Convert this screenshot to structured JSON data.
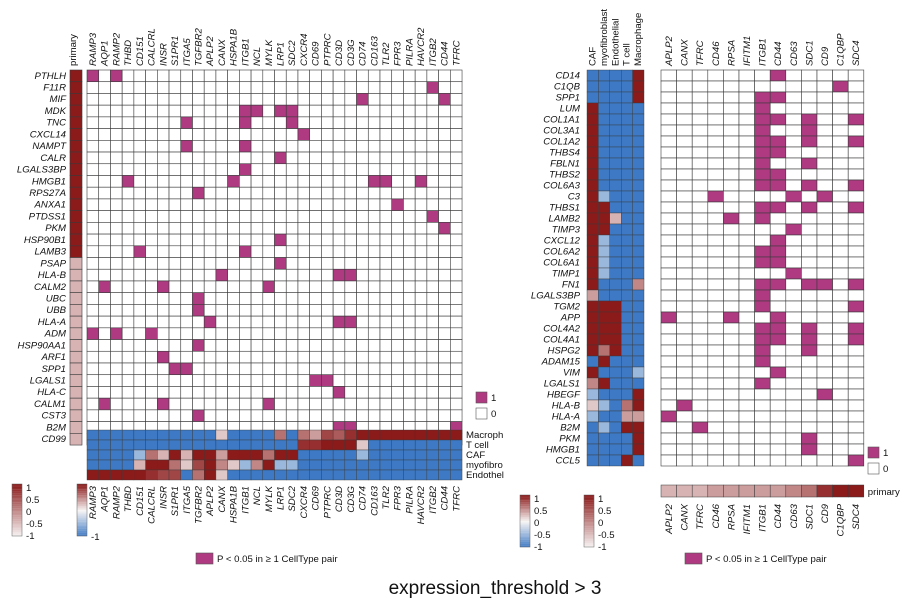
{
  "caption": "expression_threshold > 3",
  "colors": {
    "hit": "#b03a82",
    "hit_border": "#555555",
    "cell_border": "#3a3a3a",
    "red": "#8b1a1a",
    "white": "#f7f4f4",
    "blue": "#3d79c4"
  },
  "legend_text": {
    "one": "1",
    "zero": "0",
    "pair": "P < 0.05 in ≥ 1 CellType pair"
  },
  "scale_ticks_1": [
    "1",
    "0.5",
    "0",
    "-0.5",
    "-1"
  ],
  "scale_ticks_2": [
    "1",
    "0.5",
    "0",
    "-0.5",
    "-1"
  ],
  "chart_data": [
    {
      "type": "heatmap",
      "title": "",
      "rows": [
        "PTHLH",
        "F11R",
        "MIF",
        "MDK",
        "TNC",
        "CXCL14",
        "NAMPT",
        "CALR",
        "LGALS3BP",
        "HMGB1",
        "RPS27A",
        "ANXA1",
        "PTDSS1",
        "PKM",
        "HSP90B1",
        "LAMB3",
        "PSAP",
        "HLA-B",
        "CALM2",
        "UBC",
        "UBB",
        "HLA-A",
        "ADM",
        "HSP90AA1",
        "ARF1",
        "SPP1",
        "LGALS1",
        "HLA-C",
        "CALM1",
        "CST3",
        "B2M",
        "CD99"
      ],
      "columns": [
        "RAMP3",
        "AQP1",
        "RAMP2",
        "THBD",
        "CD151",
        "CALCRL",
        "INSR",
        "S1PR1",
        "ITGA5",
        "TGFBR2",
        "APLP2",
        "CANX",
        "HSPA1B",
        "ITGB1",
        "NCL",
        "MYLK",
        "LRP1",
        "SDC2",
        "CXCR4",
        "CD69",
        "PTPRC",
        "CD3D",
        "CD3G",
        "CD74",
        "CD163",
        "TLR2",
        "FPR3",
        "PILRA",
        "HAVCR2",
        "ITGB2",
        "CD44",
        "TFRC"
      ],
      "significant_cells": [
        [
          "PTHLH",
          "RAMP3"
        ],
        [
          "PTHLH",
          "RAMP2"
        ],
        [
          "F11R",
          "ITGB2"
        ],
        [
          "MIF",
          "CD74"
        ],
        [
          "MIF",
          "CD44"
        ],
        [
          "MDK",
          "ITGB1"
        ],
        [
          "MDK",
          "NCL"
        ],
        [
          "MDK",
          "LRP1"
        ],
        [
          "MDK",
          "SDC2"
        ],
        [
          "TNC",
          "ITGA5"
        ],
        [
          "TNC",
          "ITGB1"
        ],
        [
          "TNC",
          "SDC2"
        ],
        [
          "CXCL14",
          "CXCR4"
        ],
        [
          "NAMPT",
          "ITGA5"
        ],
        [
          "NAMPT",
          "ITGB1"
        ],
        [
          "CALR",
          "LRP1"
        ],
        [
          "LGALS3BP",
          "ITGB1"
        ],
        [
          "HMGB1",
          "THBD"
        ],
        [
          "HMGB1",
          "HSPA1B"
        ],
        [
          "HMGB1",
          "CD163"
        ],
        [
          "HMGB1",
          "TLR2"
        ],
        [
          "HMGB1",
          "HAVCR2"
        ],
        [
          "RPS27A",
          "TGFBR2"
        ],
        [
          "ANXA1",
          "FPR3"
        ],
        [
          "PTDSS1",
          "ITGB2"
        ],
        [
          "PKM",
          "CD44"
        ],
        [
          "HSP90B1",
          "LRP1"
        ],
        [
          "LAMB3",
          "CD151"
        ],
        [
          "LAMB3",
          "ITGB1"
        ],
        [
          "PSAP",
          "LRP1"
        ],
        [
          "HLA-B",
          "CANX"
        ],
        [
          "HLA-B",
          "CD3D"
        ],
        [
          "HLA-B",
          "CD3G"
        ],
        [
          "CALM2",
          "AQP1"
        ],
        [
          "CALM2",
          "INSR"
        ],
        [
          "CALM2",
          "MYLK"
        ],
        [
          "UBC",
          "TGFBR2"
        ],
        [
          "UBB",
          "TGFBR2"
        ],
        [
          "HLA-A",
          "APLP2"
        ],
        [
          "HLA-A",
          "CD3D"
        ],
        [
          "HLA-A",
          "CD3G"
        ],
        [
          "ADM",
          "RAMP3"
        ],
        [
          "ADM",
          "RAMP2"
        ],
        [
          "ADM",
          "CALCRL"
        ],
        [
          "HSP90AA1",
          "TGFBR2"
        ],
        [
          "ARF1",
          "INSR"
        ],
        [
          "SPP1",
          "S1PR1"
        ],
        [
          "SPP1",
          "ITGA5"
        ],
        [
          "LGALS1",
          "CD69"
        ],
        [
          "LGALS1",
          "PTPRC"
        ],
        [
          "HLA-C",
          "CD3D"
        ],
        [
          "CALM1",
          "AQP1"
        ],
        [
          "CALM1",
          "INSR"
        ],
        [
          "CALM1",
          "MYLK"
        ],
        [
          "CST3",
          "TGFBR2"
        ],
        [
          "B2M",
          "CD3D"
        ],
        [
          "B2M",
          "CD3G"
        ],
        [
          "B2M",
          "TFRC"
        ],
        [
          "CD99",
          "PILRA"
        ]
      ],
      "primary_expression": [
        1,
        1,
        1,
        1,
        1,
        1,
        1,
        1,
        1,
        1,
        1,
        1,
        1,
        1,
        1,
        1,
        0.3,
        0.3,
        0.3,
        0.3,
        0.3,
        0.3,
        0.3,
        0.3,
        0.3,
        0.3,
        0.3,
        0.3,
        0.3,
        0.3,
        0.3,
        0.3
      ],
      "celltype_rows": [
        "Macroph",
        "T cell",
        "CAF",
        "myofibro",
        "Endothel"
      ],
      "celltype_expression": [
        [
          -1,
          -1,
          -1,
          -1,
          -1,
          -1,
          -1,
          -1,
          -1,
          -1,
          -1,
          0.2,
          -1,
          -1,
          -1,
          -1,
          0.6,
          -1,
          0.6,
          0.4,
          0.8,
          0.7,
          0.9,
          1,
          1,
          1,
          1,
          1,
          1,
          1,
          1,
          1
        ],
        [
          -1,
          -1,
          -1,
          -1,
          -1,
          -1,
          -1,
          -1,
          -1,
          -1,
          -1,
          -1,
          -1,
          -1,
          -1,
          -1,
          -1,
          -1,
          0.9,
          0.9,
          1,
          1,
          1,
          0.2,
          -1,
          -1,
          -1,
          -1,
          -1,
          -1,
          -1,
          -1
        ],
        [
          -1,
          -1,
          -1,
          -1,
          -0.5,
          0.6,
          0.3,
          1,
          0.3,
          1,
          1,
          0.4,
          1,
          1,
          1,
          0.6,
          1,
          1,
          -1,
          -1,
          -1,
          -1,
          -1,
          -0.5,
          -1,
          -1,
          -1,
          -1,
          -1,
          -1,
          -1,
          -1
        ],
        [
          -1,
          -1,
          -1,
          -1,
          0.3,
          1,
          1,
          0.6,
          0.2,
          0.8,
          1,
          0.5,
          0.2,
          -0.5,
          0.5,
          1,
          -0.5,
          -0.5,
          -1,
          -1,
          -1,
          -1,
          -1,
          -1,
          -1,
          -1,
          -1,
          -1,
          -1,
          -1,
          -1,
          -1
        ],
        [
          1,
          1,
          1,
          1,
          1,
          0.9,
          0.8,
          0.8,
          -1,
          0.6,
          1,
          0.2,
          -1,
          -1,
          -1,
          -1,
          -1,
          -1,
          -1,
          -1,
          -1,
          -1,
          -1,
          -1,
          -1,
          -1,
          -1,
          -1,
          -1,
          -1,
          -1,
          -1
        ]
      ],
      "color_scale": [
        -1,
        1
      ]
    },
    {
      "type": "heatmap",
      "title": "",
      "rows": [
        "CD14",
        "C1QB",
        "SPP1",
        "LUM",
        "COL1A1",
        "COL3A1",
        "COL1A2",
        "THBS4",
        "FBLN1",
        "THBS2",
        "COL6A3",
        "C3",
        "THBS1",
        "LAMB2",
        "TIMP3",
        "CXCL12",
        "COL6A2",
        "COL6A1",
        "TIMP1",
        "FN1",
        "LGALS3BP",
        "TGM2",
        "APP",
        "COL4A2",
        "COL4A1",
        "HSPG2",
        "ADAM15",
        "VIM",
        "LGALS1",
        "HBEGF",
        "HLA-B",
        "HLA-A",
        "B2M",
        "PKM",
        "HMGB1",
        "CCL5"
      ],
      "columns": [
        "APLP2",
        "CANX",
        "TFRC",
        "CD46",
        "RPSA",
        "IFITM1",
        "ITGB1",
        "CD44",
        "CD63",
        "SDC1",
        "CD9",
        "C1QBP",
        "SDC4"
      ],
      "celltype_columns": [
        "CAF",
        "myofibroblast",
        "Endothelial",
        "T cell",
        "Macrophage"
      ],
      "significant_cells": [
        [
          "CD14",
          "CD44"
        ],
        [
          "C1QB",
          "C1QBP"
        ],
        [
          "SPP1",
          "ITGB1"
        ],
        [
          "SPP1",
          "CD44"
        ],
        [
          "LUM",
          "ITGB1"
        ],
        [
          "COL1A1",
          "ITGB1"
        ],
        [
          "COL1A1",
          "CD44"
        ],
        [
          "COL1A1",
          "SDC1"
        ],
        [
          "COL1A1",
          "SDC4"
        ],
        [
          "COL3A1",
          "ITGB1"
        ],
        [
          "COL3A1",
          "SDC1"
        ],
        [
          "COL1A2",
          "ITGB1"
        ],
        [
          "COL1A2",
          "CD44"
        ],
        [
          "COL1A2",
          "SDC1"
        ],
        [
          "COL1A2",
          "SDC4"
        ],
        [
          "THBS4",
          "ITGB1"
        ],
        [
          "THBS4",
          "CD44"
        ],
        [
          "FBLN1",
          "ITGB1"
        ],
        [
          "FBLN1",
          "SDC1"
        ],
        [
          "THBS2",
          "ITGB1"
        ],
        [
          "THBS2",
          "CD44"
        ],
        [
          "COL6A3",
          "ITGB1"
        ],
        [
          "COL6A3",
          "CD44"
        ],
        [
          "COL6A3",
          "SDC1"
        ],
        [
          "COL6A3",
          "SDC4"
        ],
        [
          "C3",
          "CD46"
        ],
        [
          "C3",
          "CD63"
        ],
        [
          "C3",
          "CD9"
        ],
        [
          "THBS1",
          "ITGB1"
        ],
        [
          "THBS1",
          "CD44"
        ],
        [
          "THBS1",
          "SDC1"
        ],
        [
          "THBS1",
          "SDC4"
        ],
        [
          "LAMB2",
          "RPSA"
        ],
        [
          "LAMB2",
          "ITGB1"
        ],
        [
          "TIMP3",
          "CD63"
        ],
        [
          "CXCL12",
          "CD44"
        ],
        [
          "COL6A2",
          "ITGB1"
        ],
        [
          "COL6A2",
          "CD44"
        ],
        [
          "COL6A1",
          "ITGB1"
        ],
        [
          "COL6A1",
          "CD44"
        ],
        [
          "TIMP1",
          "CD63"
        ],
        [
          "FN1",
          "ITGB1"
        ],
        [
          "FN1",
          "CD44"
        ],
        [
          "FN1",
          "SDC1"
        ],
        [
          "FN1",
          "CD9"
        ],
        [
          "FN1",
          "SDC4"
        ],
        [
          "LGALS3BP",
          "ITGB1"
        ],
        [
          "TGM2",
          "ITGB1"
        ],
        [
          "TGM2",
          "SDC4"
        ],
        [
          "APP",
          "APLP2"
        ],
        [
          "APP",
          "RPSA"
        ],
        [
          "APP",
          "CD44"
        ],
        [
          "COL4A2",
          "ITGB1"
        ],
        [
          "COL4A2",
          "CD44"
        ],
        [
          "COL4A2",
          "SDC1"
        ],
        [
          "COL4A2",
          "SDC4"
        ],
        [
          "COL4A1",
          "ITGB1"
        ],
        [
          "COL4A1",
          "CD44"
        ],
        [
          "COL4A1",
          "SDC1"
        ],
        [
          "COL4A1",
          "SDC4"
        ],
        [
          "HSPG2",
          "ITGB1"
        ],
        [
          "HSPG2",
          "SDC1"
        ],
        [
          "ADAM15",
          "ITGB1"
        ],
        [
          "VIM",
          "CD44"
        ],
        [
          "LGALS1",
          "ITGB1"
        ],
        [
          "HBEGF",
          "CD9"
        ],
        [
          "HLA-B",
          "CANX"
        ],
        [
          "HLA-A",
          "APLP2"
        ],
        [
          "B2M",
          "TFRC"
        ],
        [
          "PKM",
          "SDC1"
        ],
        [
          "HMGB1",
          "SDC1"
        ],
        [
          "CCL5",
          "SDC4"
        ]
      ],
      "celltype_expression": [
        [
          -1,
          -1,
          -1,
          -1,
          1
        ],
        [
          -1,
          -1,
          -1,
          -1,
          1
        ],
        [
          -1,
          -1,
          -1,
          -1,
          1
        ],
        [
          1,
          -1,
          -1,
          -1,
          -1
        ],
        [
          1,
          -1,
          -1,
          -1,
          -1
        ],
        [
          1,
          -1,
          -1,
          -1,
          -1
        ],
        [
          1,
          -1,
          -1,
          -1,
          -1
        ],
        [
          1,
          -1,
          -1,
          -1,
          -1
        ],
        [
          1,
          -1,
          -1,
          -1,
          -1
        ],
        [
          1,
          -1,
          -1,
          -1,
          -1
        ],
        [
          1,
          -1,
          -1,
          -1,
          -1
        ],
        [
          1,
          -0.5,
          -1,
          -1,
          -1
        ],
        [
          1,
          1,
          -1,
          -1,
          -1
        ],
        [
          1,
          1,
          0.3,
          -1,
          -1
        ],
        [
          1,
          1,
          -1,
          -1,
          -1
        ],
        [
          1,
          -0.5,
          -1,
          -1,
          -1
        ],
        [
          1,
          -0.5,
          -1,
          -1,
          -1
        ],
        [
          1,
          -0.5,
          -1,
          -1,
          -1
        ],
        [
          1,
          -0.5,
          -1,
          -1,
          -1
        ],
        [
          1,
          -1,
          -1,
          -1,
          0.5
        ],
        [
          0.4,
          -1,
          -1,
          -1,
          -1
        ],
        [
          1,
          1,
          1,
          -1,
          -1
        ],
        [
          1,
          1,
          1,
          -1,
          -1
        ],
        [
          1,
          1,
          1,
          -1,
          -1
        ],
        [
          1,
          1,
          1,
          -1,
          -1
        ],
        [
          1,
          0.6,
          1,
          -1,
          -1
        ],
        [
          -1,
          1,
          -1,
          -1,
          -1
        ],
        [
          1,
          -1,
          -1,
          -1,
          -0.5
        ],
        [
          0.5,
          1,
          -1,
          -1,
          -1
        ],
        [
          -0.5,
          -1,
          -1,
          -1,
          1
        ],
        [
          0.2,
          -0.5,
          -1,
          0.6,
          1
        ],
        [
          -0.5,
          -1,
          -1,
          0.4,
          0.4
        ],
        [
          -1,
          -0.5,
          -1,
          1,
          1
        ],
        [
          -1,
          -1,
          -1,
          -1,
          1
        ],
        [
          -1,
          -1,
          -1,
          -1,
          1
        ],
        [
          -1,
          -1,
          -1,
          1,
          -1
        ]
      ],
      "primary_expression": [
        0.3,
        0.3,
        0.3,
        0.4,
        0.4,
        0.4,
        0.4,
        0.4,
        0.5,
        0.6,
        0.9,
        1,
        1
      ],
      "color_scale": [
        -1,
        1
      ]
    }
  ]
}
